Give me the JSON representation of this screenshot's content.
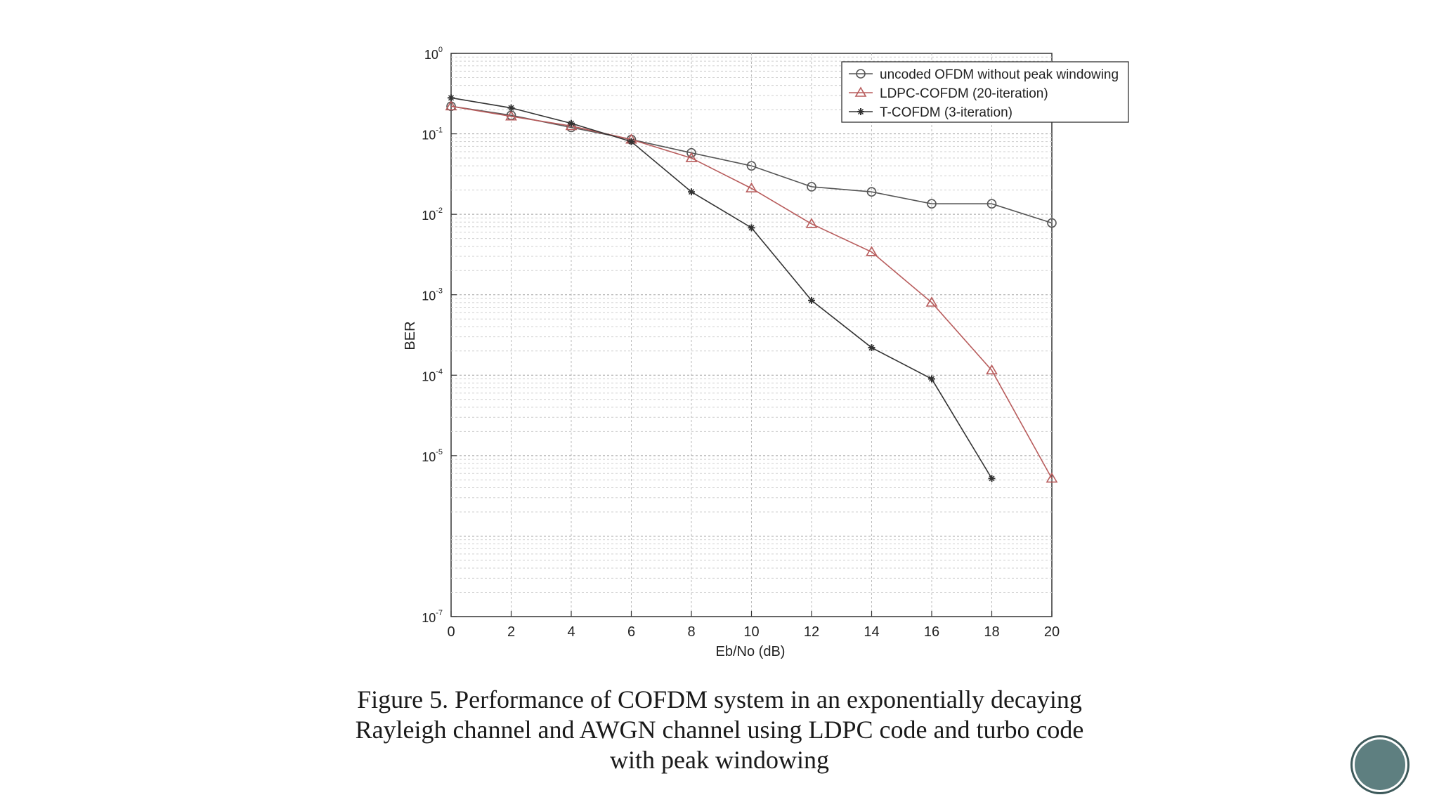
{
  "chart_data": {
    "type": "line",
    "title": "",
    "xlabel": "Eb/No (dB)",
    "ylabel": "BER",
    "xlim": [
      0,
      20
    ],
    "ylim": [
      1e-07,
      1
    ],
    "yscale": "log",
    "grid": true,
    "legend_position": "top-right",
    "x_ticks": [
      "0",
      "2",
      "4",
      "6",
      "8",
      "10",
      "12",
      "14",
      "16",
      "18",
      "20"
    ],
    "y_ticks": [
      {
        "base": "10",
        "exp": "0"
      },
      {
        "base": "10",
        "exp": "-1"
      },
      {
        "base": "10",
        "exp": "-2"
      },
      {
        "base": "10",
        "exp": "-3"
      },
      {
        "base": "10",
        "exp": "-4"
      },
      {
        "base": "10",
        "exp": "-5"
      },
      {
        "base": "10",
        "exp": "-7"
      }
    ],
    "x": [
      0,
      2,
      4,
      6,
      8,
      10,
      12,
      14,
      16,
      18,
      20
    ],
    "series": [
      {
        "name": "uncoded OFDM without peak windowing",
        "marker": "circle",
        "color": "#555555",
        "values": [
          0.22,
          0.17,
          0.12,
          0.085,
          0.058,
          0.04,
          0.022,
          0.019,
          0.0135,
          0.0135,
          0.0078
        ]
      },
      {
        "name": "LDPC-COFDM (20-iteration)",
        "marker": "triangle",
        "color": "#b85c5c",
        "values": [
          0.22,
          0.165,
          0.125,
          0.085,
          0.05,
          0.021,
          0.0076,
          0.0034,
          0.0008,
          0.000115,
          5.2e-06
        ]
      },
      {
        "name": "T-COFDM (3-iteration)",
        "marker": "star",
        "color": "#333333",
        "values": [
          0.28,
          0.21,
          0.135,
          0.08,
          0.019,
          0.0068,
          0.00085,
          0.00022,
          9e-05,
          5.2e-06,
          null
        ]
      }
    ]
  },
  "caption": {
    "lines": [
      "Figure 5. Performance of COFDM system in an exponentially decaying",
      "Rayleigh channel and AWGN channel using LDPC code and turbo code",
      "with peak windowing"
    ]
  }
}
